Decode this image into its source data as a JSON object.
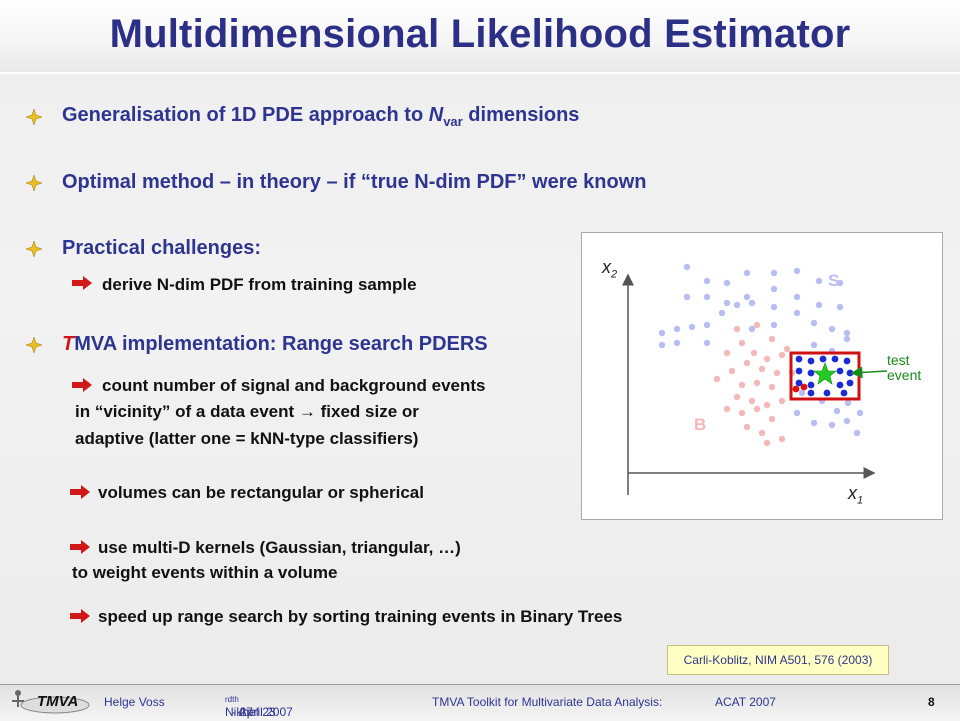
{
  "title": "Multidimensional Likelihood Estimator",
  "bullets": {
    "b1_pre": "Generalisation of 1D PDE approach to ",
    "b1_var": "N",
    "b1_sub": "var",
    "b1_post": " dimensions",
    "b2": "Optimal method – in theory – if “true N-dim PDF” were known",
    "b3": "Practical challenges:",
    "b3_sub": "derive N-dim PDF from training sample",
    "b4_first": "T",
    "b4_rest": "MVA implementation: Range search PDERS",
    "b4_sub1_l1": "count number of signal and background events",
    "b4_sub1_l2": "in “vicinity”  of a data event → fixed size or",
    "b4_sub1_l3": "adaptive (latter one =  kNN-type classifiers)",
    "b4_sub2": "volumes can be rectangular or spherical",
    "b4_sub3_l1": "use multi-D kernels (Gaussian, triangular, …)",
    "b4_sub3_l2": "to weight events within a volume",
    "b4_sub4": "speed up range search by sorting training events in Binary Trees"
  },
  "reference": "Carli-Koblitz, NIM A501, 576 (2003)",
  "figure": {
    "x_axis": "x",
    "x_axis_sub": "1",
    "y_axis": "x",
    "y_axis_sub": "2",
    "signal_label": "S",
    "background_label": "B",
    "test_label_l1": "test",
    "test_label_l2": "event",
    "colors": {
      "signal_faint": "#b8bdf2",
      "background_faint": "#f5b8b8",
      "signal_dot": "#1a2bd6",
      "background_dot": "#e01010",
      "box": "#d01010",
      "star": "#22cc22",
      "arrow": "#1a8a1a"
    }
  },
  "footer": {
    "logo": "TMVA",
    "author": "Helge Voss",
    "event_pre": "Nikhef  23",
    "event_sup1": "rd",
    "event_mid": " - 27",
    "event_sup2": "th",
    "event_post": " April 2007",
    "talk": "TMVA Toolkit for Multivariate Data Analysis:",
    "conference": "ACAT 2007",
    "page": "8"
  },
  "colors": {
    "title": "#2b2f86",
    "bullet_text": "#2e3590",
    "bullet_icon": "#e8c020",
    "arrow_icon": "#d01818"
  }
}
